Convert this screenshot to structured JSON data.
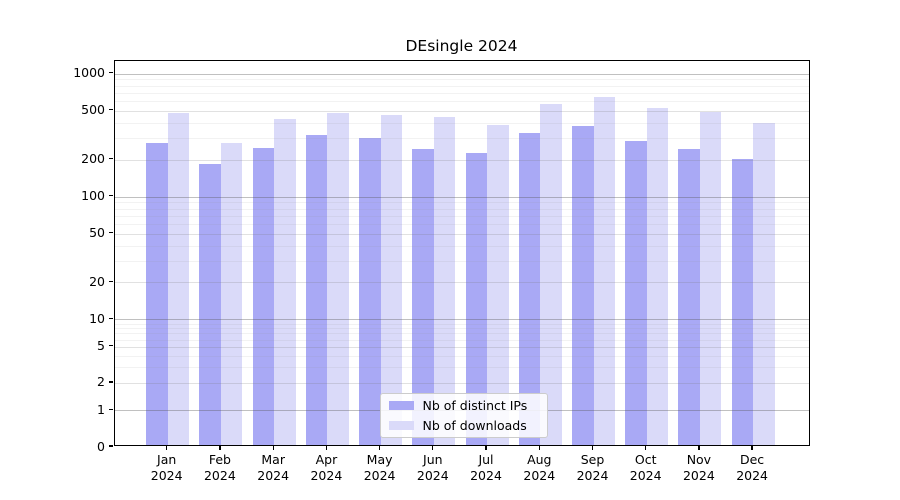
{
  "title": "DEsingle 2024",
  "chart_data": {
    "type": "bar",
    "title": "DEsingle 2024",
    "categories": [
      "Jan 2024",
      "Feb 2024",
      "Mar 2024",
      "Apr 2024",
      "May 2024",
      "Jun 2024",
      "Jul 2024",
      "Aug 2024",
      "Sep 2024",
      "Oct 2024",
      "Nov 2024",
      "Dec 2024"
    ],
    "series": [
      {
        "name": "Nb of distinct IPs",
        "color": "#a9a9f5",
        "values": [
          265,
          177,
          240,
          305,
          287,
          237,
          218,
          320,
          360,
          275,
          235,
          196
        ]
      },
      {
        "name": "Nb of downloads",
        "color": "#dadaf9",
        "values": [
          465,
          263,
          410,
          460,
          447,
          430,
          370,
          550,
          620,
          507,
          473,
          385
        ]
      }
    ],
    "xlabel": "",
    "ylabel": "",
    "yscale": "log (with 0 baseline)",
    "y_tick_labels": [
      "0",
      "1",
      "2",
      "5",
      "10",
      "20",
      "50",
      "100",
      "200",
      "500",
      "1000"
    ],
    "ylim": [
      0,
      1280
    ],
    "grid": "horizontal, major and minor",
    "legend_position": "lower center, inside plot",
    "grid_colors": {
      "major": "#b3b3b3",
      "labeled_minor": "#e2e2e2",
      "minor": "#f0f0f0"
    }
  }
}
